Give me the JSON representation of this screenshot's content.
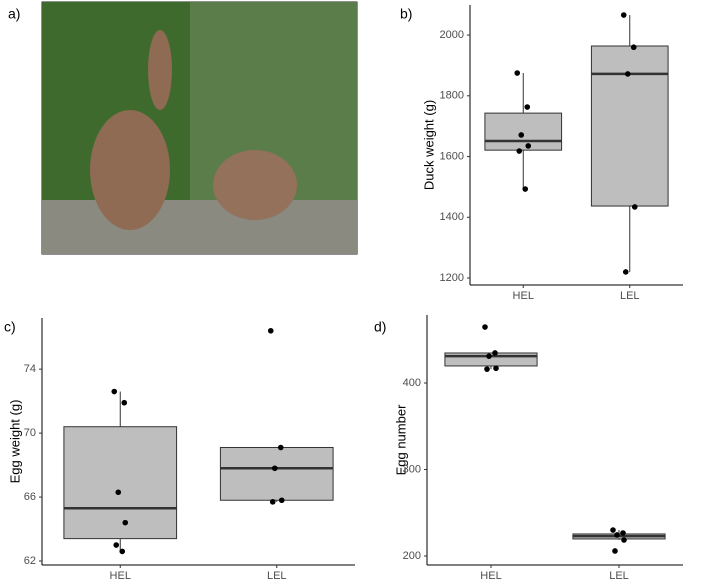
{
  "photo_label": "a)",
  "chart_data": [
    {
      "type": "box",
      "label": "b)",
      "y_label": "Duck weight (g)",
      "categories": [
        "HEL",
        "LEL"
      ],
      "boxes": [
        {
          "min": 1493,
          "q1": 1621,
          "median": 1651,
          "q3": 1743,
          "max": 1875
        },
        {
          "min": 1220,
          "q1": 1437,
          "median": 1872,
          "q3": 1964,
          "max": 2066
        }
      ],
      "points": [
        [
          1875,
          1763,
          1671,
          1635,
          1618,
          1493
        ],
        [
          2066,
          1960,
          1872,
          1434,
          1220
        ]
      ],
      "color": "#bebebe",
      "ylim": [
        1177,
        2099
      ],
      "yticks": [
        1200,
        1400,
        1600,
        1800,
        2000
      ]
    },
    {
      "type": "box",
      "label": "c)",
      "y_label": "Egg weight (g)",
      "categories": [
        "HEL",
        "LEL"
      ],
      "boxes": [
        {
          "min": 62.6,
          "q1": 63.4,
          "median": 65.3,
          "q3": 70.4,
          "max": 72.6
        },
        {
          "min": 65.7,
          "q1": 65.8,
          "median": 67.8,
          "q3": 69.1,
          "max": 69.1
        }
      ],
      "points": [
        [
          72.6,
          71.9,
          66.3,
          64.4,
          63.0,
          62.6
        ],
        [
          76.4,
          69.1,
          67.8,
          65.8,
          65.7
        ]
      ],
      "color": "#bebebe",
      "ylim": [
        61.75,
        77.2
      ],
      "yticks": [
        62,
        66,
        70,
        74
      ]
    },
    {
      "type": "box",
      "label": "d)",
      "y_label": "Egg number",
      "categories": [
        "HEL",
        "LEL"
      ],
      "boxes": [
        {
          "min": 416,
          "q1": 419.7,
          "median": 431,
          "q3": 434.7,
          "max": 434.7
        },
        {
          "min": 218.5,
          "q1": 219.7,
          "median": 223,
          "q3": 225.5,
          "max": 230
        }
      ],
      "points": [
        [
          464.7,
          434.7,
          431,
          417,
          416
        ],
        [
          230,
          226.6,
          224.3,
          218.5,
          205.8
        ]
      ],
      "color": "#bebebe",
      "ylim": [
        189.6,
        478.6
      ],
      "yticks": [
        200,
        300,
        400
      ]
    }
  ]
}
